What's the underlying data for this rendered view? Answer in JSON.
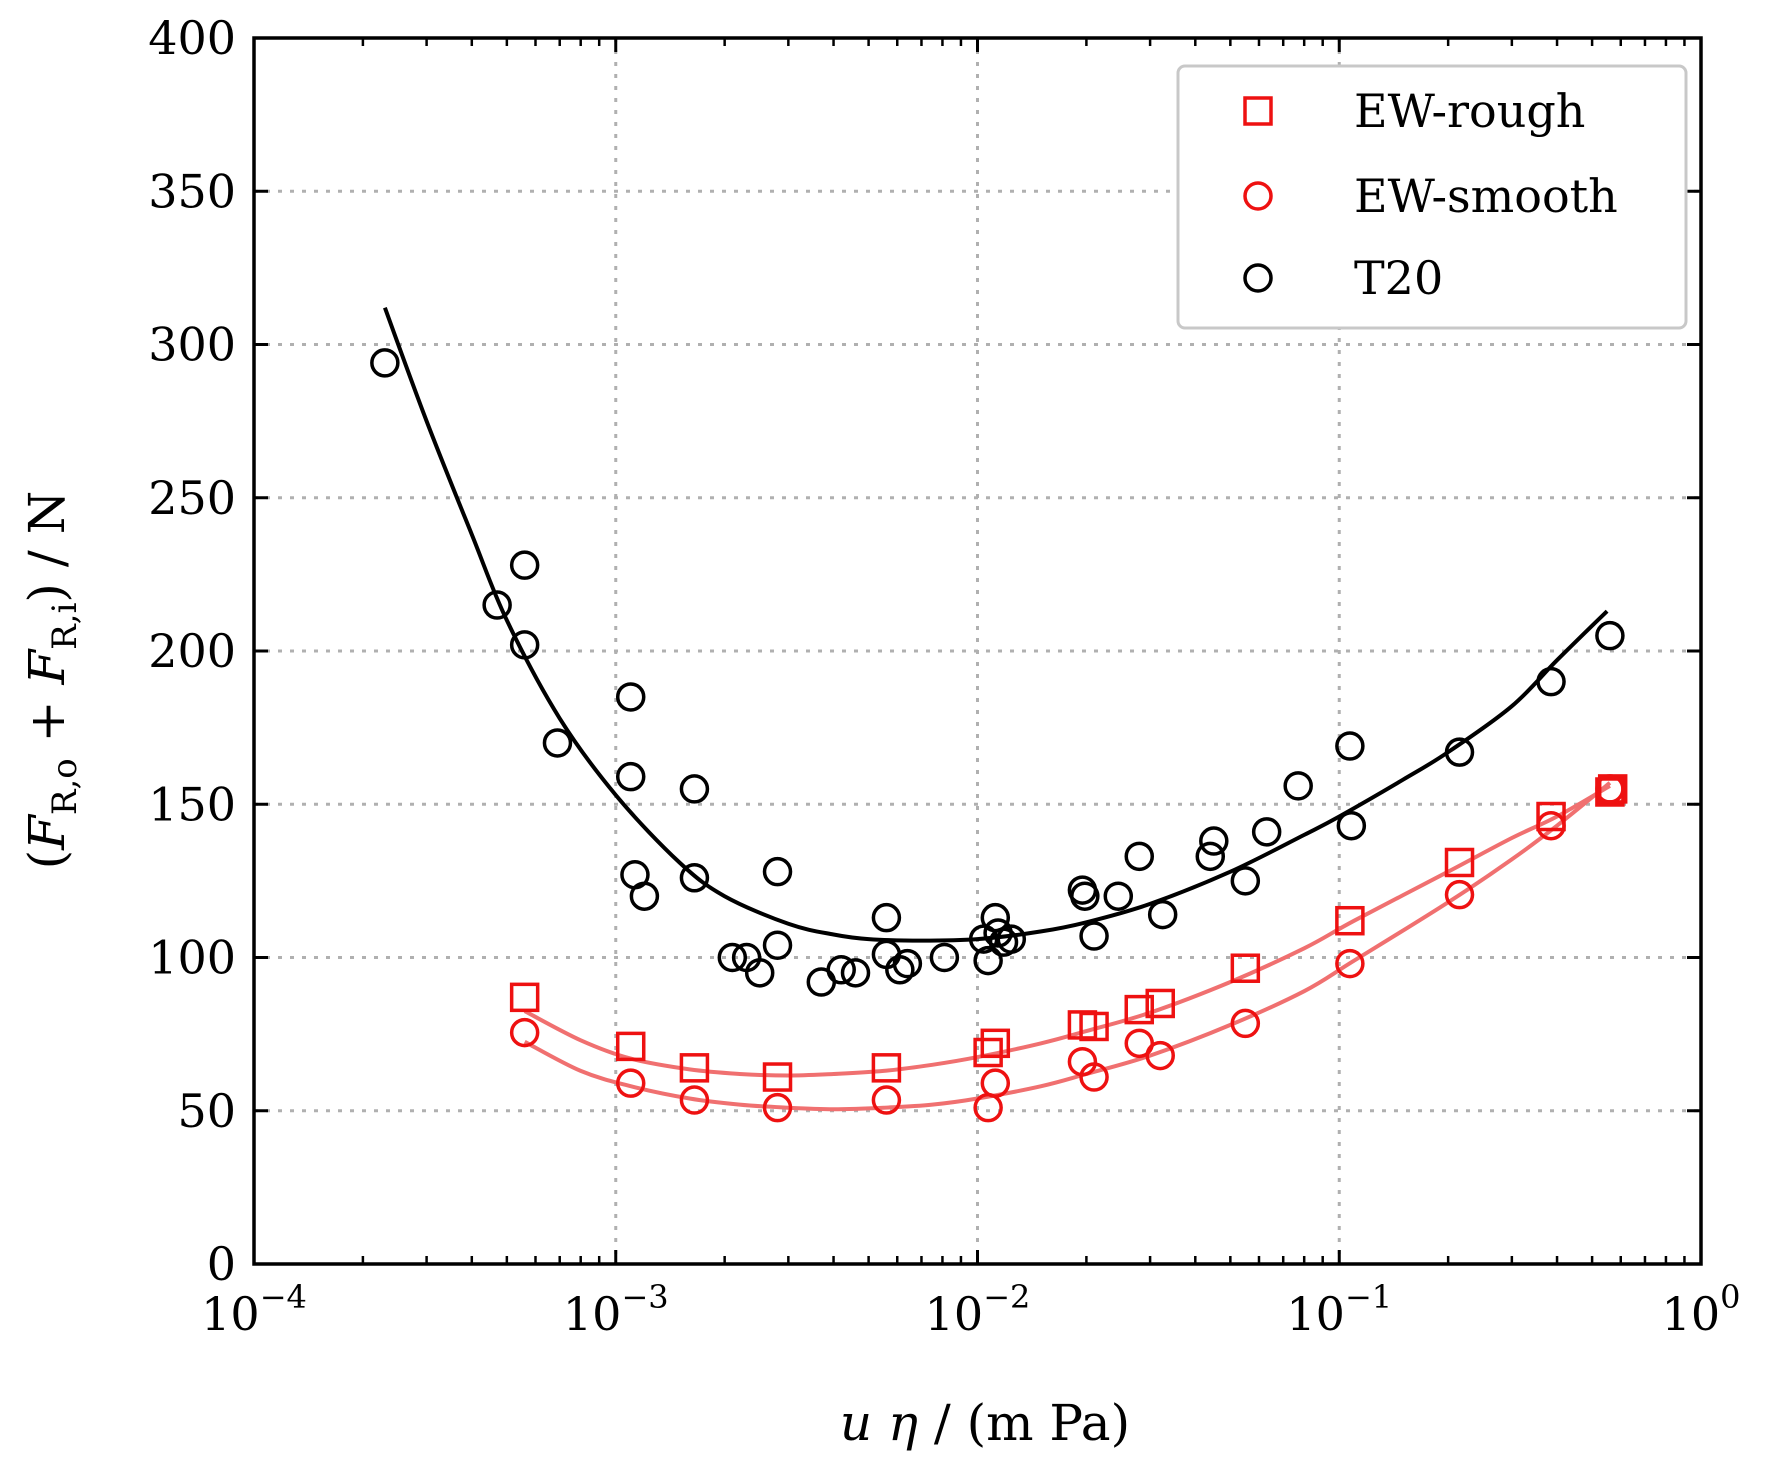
{
  "chart_data": {
    "type": "scatter",
    "x_scale": "log",
    "xlim": [
      0.0001,
      1
    ],
    "ylim": [
      0,
      400
    ],
    "x_ticks": [
      {
        "value": 0.0001,
        "base": "10",
        "exp": "−4"
      },
      {
        "value": 0.001,
        "base": "10",
        "exp": "−3"
      },
      {
        "value": 0.01,
        "base": "10",
        "exp": "−2"
      },
      {
        "value": 0.1,
        "base": "10",
        "exp": "−1"
      },
      {
        "value": 1,
        "base": "10",
        "exp": "0"
      }
    ],
    "y_ticks": [
      0,
      50,
      100,
      150,
      200,
      250,
      300,
      350,
      400
    ],
    "xlabel": "u η / (m Pa)",
    "ylabel": "(F_R,o + F_R,i) / N",
    "grid": true,
    "legend_position": "top-right",
    "series": [
      {
        "name": "EW-rough",
        "marker": "square",
        "color": "#ee1111",
        "points": [
          [
            0.00056,
            87
          ],
          [
            0.0011,
            71
          ],
          [
            0.00165,
            64
          ],
          [
            0.0028,
            61
          ],
          [
            0.0056,
            64
          ],
          [
            0.0107,
            69
          ],
          [
            0.0112,
            72
          ],
          [
            0.0195,
            78
          ],
          [
            0.021,
            77.5
          ],
          [
            0.028,
            83
          ],
          [
            0.032,
            85
          ],
          [
            0.055,
            96.5
          ],
          [
            0.107,
            112
          ],
          [
            0.215,
            131
          ],
          [
            0.385,
            146
          ],
          [
            0.56,
            154
          ],
          [
            0.57,
            155
          ]
        ]
      },
      {
        "name": "EW-smooth",
        "marker": "circle",
        "color": "#ee1111",
        "points": [
          [
            0.00056,
            75.5
          ],
          [
            0.0011,
            59
          ],
          [
            0.00165,
            53.5
          ],
          [
            0.0028,
            51
          ],
          [
            0.0056,
            53.5
          ],
          [
            0.0107,
            51
          ],
          [
            0.0112,
            59
          ],
          [
            0.0195,
            66
          ],
          [
            0.021,
            61
          ],
          [
            0.028,
            72
          ],
          [
            0.032,
            68
          ],
          [
            0.055,
            78.5
          ],
          [
            0.107,
            98
          ],
          [
            0.215,
            120.5
          ],
          [
            0.385,
            143
          ],
          [
            0.56,
            155
          ]
        ]
      },
      {
        "name": "T20",
        "marker": "circle",
        "color": "#000000",
        "points": [
          [
            0.00023,
            294
          ],
          [
            0.00047,
            215
          ],
          [
            0.00056,
            228
          ],
          [
            0.00056,
            202
          ],
          [
            0.00069,
            170
          ],
          [
            0.0011,
            185
          ],
          [
            0.0011,
            159
          ],
          [
            0.00113,
            127
          ],
          [
            0.0012,
            120
          ],
          [
            0.00165,
            155
          ],
          [
            0.00165,
            126
          ],
          [
            0.0021,
            100
          ],
          [
            0.0023,
            100
          ],
          [
            0.0025,
            95
          ],
          [
            0.0028,
            104
          ],
          [
            0.0028,
            128
          ],
          [
            0.0037,
            92
          ],
          [
            0.0042,
            96
          ],
          [
            0.0046,
            95
          ],
          [
            0.0056,
            113
          ],
          [
            0.0056,
            101
          ],
          [
            0.0061,
            96
          ],
          [
            0.0064,
            98
          ],
          [
            0.0081,
            100
          ],
          [
            0.0104,
            106
          ],
          [
            0.0107,
            99
          ],
          [
            0.0112,
            113
          ],
          [
            0.0114,
            108
          ],
          [
            0.0118,
            105
          ],
          [
            0.0124,
            106
          ],
          [
            0.0195,
            122
          ],
          [
            0.0198,
            120
          ],
          [
            0.021,
            107
          ],
          [
            0.0245,
            120
          ],
          [
            0.028,
            133
          ],
          [
            0.0325,
            114
          ],
          [
            0.044,
            133
          ],
          [
            0.045,
            138
          ],
          [
            0.055,
            125
          ],
          [
            0.063,
            141
          ],
          [
            0.077,
            156
          ],
          [
            0.107,
            169
          ],
          [
            0.108,
            143
          ],
          [
            0.215,
            167
          ],
          [
            0.385,
            190
          ],
          [
            0.56,
            205
          ]
        ]
      }
    ],
    "fit_curves": [
      {
        "series": "EW-rough",
        "color": "#f07070",
        "points": [
          [
            0.00056,
            82.5
          ],
          [
            0.0008,
            73
          ],
          [
            0.0011,
            67
          ],
          [
            0.0016,
            63.5
          ],
          [
            0.0022,
            62
          ],
          [
            0.003,
            61.5
          ],
          [
            0.004,
            62
          ],
          [
            0.0055,
            63
          ],
          [
            0.0075,
            65
          ],
          [
            0.01,
            67.5
          ],
          [
            0.015,
            72
          ],
          [
            0.02,
            76
          ],
          [
            0.03,
            82
          ],
          [
            0.05,
            92
          ],
          [
            0.08,
            103
          ],
          [
            0.11,
            112
          ],
          [
            0.2,
            128
          ],
          [
            0.3,
            139
          ],
          [
            0.4,
            146
          ],
          [
            0.56,
            156
          ]
        ]
      },
      {
        "series": "EW-smooth",
        "color": "#f07070",
        "points": [
          [
            0.00056,
            72.5
          ],
          [
            0.0008,
            63
          ],
          [
            0.0011,
            58
          ],
          [
            0.0016,
            54
          ],
          [
            0.0022,
            52
          ],
          [
            0.003,
            51
          ],
          [
            0.004,
            50.5
          ],
          [
            0.0055,
            51
          ],
          [
            0.0075,
            52
          ],
          [
            0.01,
            54
          ],
          [
            0.015,
            58
          ],
          [
            0.02,
            62
          ],
          [
            0.03,
            68
          ],
          [
            0.05,
            78
          ],
          [
            0.08,
            89
          ],
          [
            0.11,
            99
          ],
          [
            0.2,
            118
          ],
          [
            0.3,
            132
          ],
          [
            0.4,
            143
          ],
          [
            0.56,
            157
          ]
        ]
      },
      {
        "series": "T20",
        "color": "#000000",
        "points": [
          [
            0.00023,
            312
          ],
          [
            0.0003,
            275
          ],
          [
            0.0004,
            238
          ],
          [
            0.0005,
            210
          ],
          [
            0.0007,
            178
          ],
          [
            0.001,
            153
          ],
          [
            0.0015,
            131
          ],
          [
            0.002,
            120
          ],
          [
            0.003,
            111
          ],
          [
            0.004,
            107.5
          ],
          [
            0.005,
            106
          ],
          [
            0.007,
            105.5
          ],
          [
            0.01,
            106
          ],
          [
            0.015,
            108.5
          ],
          [
            0.02,
            111.5
          ],
          [
            0.03,
            117.5
          ],
          [
            0.05,
            128
          ],
          [
            0.08,
            140
          ],
          [
            0.1,
            146
          ],
          [
            0.15,
            158
          ],
          [
            0.2,
            167
          ],
          [
            0.3,
            182
          ],
          [
            0.4,
            197
          ],
          [
            0.55,
            213
          ]
        ]
      }
    ]
  }
}
